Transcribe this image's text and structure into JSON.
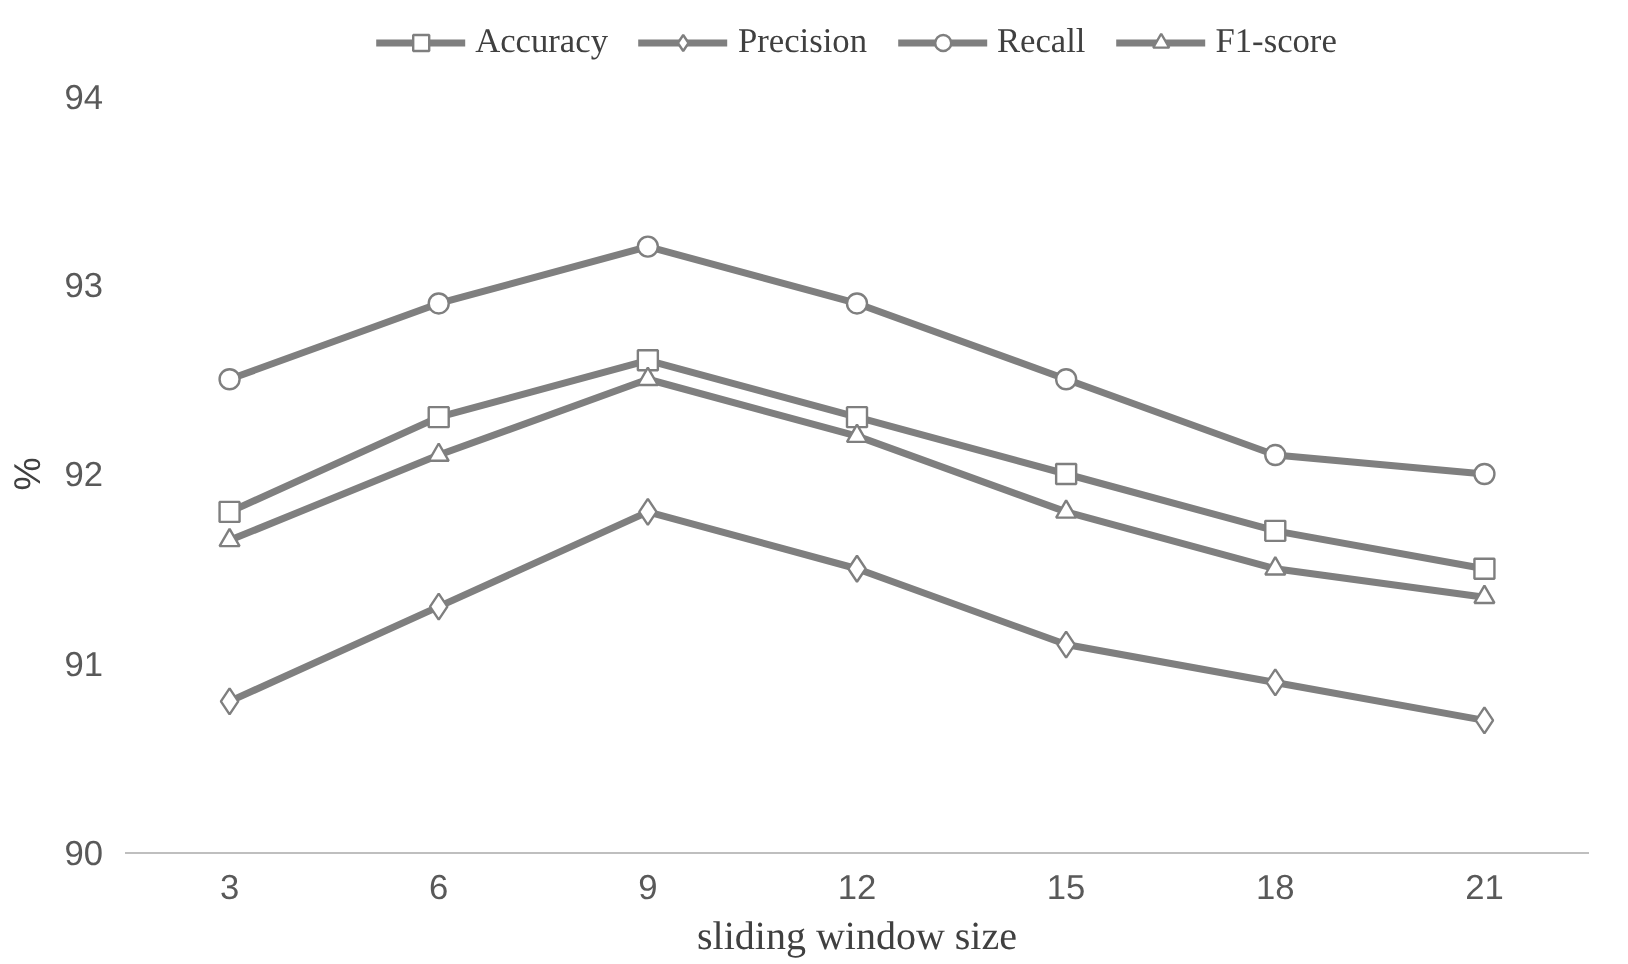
{
  "chart_data": {
    "type": "line",
    "xlabel": "sliding window size",
    "ylabel": "%",
    "categories": [
      "3",
      "6",
      "9",
      "12",
      "15",
      "18",
      "21"
    ],
    "ylim": [
      90,
      94
    ],
    "yticks": [
      90,
      91,
      92,
      93,
      94
    ],
    "grid": false,
    "legend": "top",
    "line_style": "solid",
    "series": [
      {
        "name": "Accuracy",
        "color": "#7f7f7f",
        "marker": "square",
        "values": [
          91.8,
          92.3,
          92.6,
          92.3,
          92.0,
          91.7,
          91.5
        ]
      },
      {
        "name": "Precision",
        "color": "#7f7f7f",
        "marker": "diamond",
        "values": [
          90.8,
          91.3,
          91.8,
          91.5,
          91.1,
          90.9,
          90.7
        ]
      },
      {
        "name": "Recall",
        "color": "#7f7f7f",
        "marker": "circle",
        "values": [
          92.5,
          92.9,
          93.2,
          92.9,
          92.5,
          92.1,
          92.0
        ]
      },
      {
        "name": "F1-score",
        "color": "#7f7f7f",
        "marker": "triangle",
        "values": [
          91.65,
          92.1,
          92.5,
          92.2,
          91.8,
          91.5,
          91.35
        ]
      }
    ]
  }
}
